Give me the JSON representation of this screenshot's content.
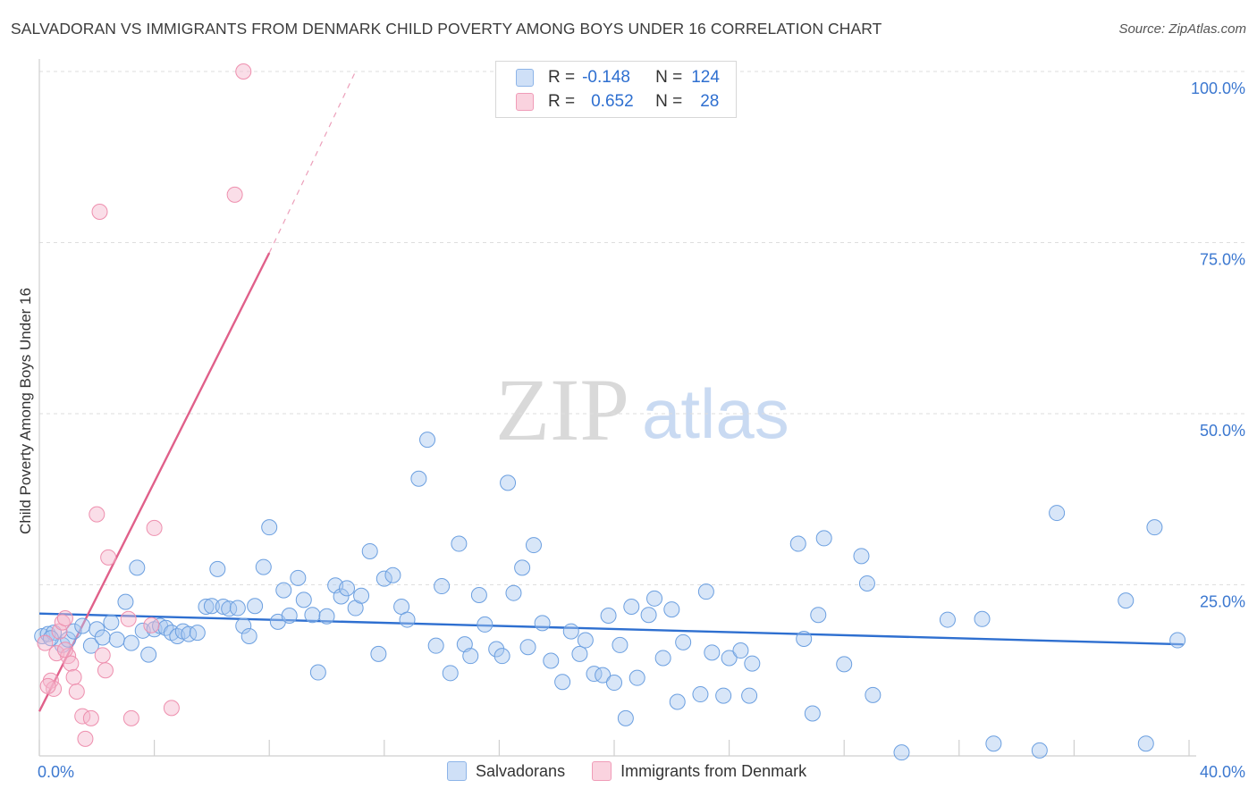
{
  "header": {
    "title": "SALVADORAN VS IMMIGRANTS FROM DENMARK CHILD POVERTY AMONG BOYS UNDER 16 CORRELATION CHART",
    "source": "Source: ZipAtlas.com"
  },
  "watermark": {
    "zip": "ZIP",
    "atlas": "atlas"
  },
  "legend": {
    "rows": [
      {
        "r_label": "R =",
        "r_value": "-0.148",
        "n_label": "N =",
        "n_value": "124",
        "color": "#a9c8f0"
      },
      {
        "r_label": "R =",
        "r_value": "0.652",
        "n_label": "N =",
        "n_value": "28",
        "color": "#f5b6cb"
      }
    ]
  },
  "bottom_legend": {
    "items": [
      {
        "label": "Salvadorans",
        "color": "#a9c8f0"
      },
      {
        "label": "Immigrants from Denmark",
        "color": "#f5b6cb"
      }
    ]
  },
  "chart_data": {
    "type": "scatter",
    "ylabel": "Child Poverty Among Boys Under 16",
    "xlim": [
      0,
      40
    ],
    "ylim": [
      0,
      100
    ],
    "x_tick_labels": [
      {
        "value": 0,
        "label": "0.0%"
      },
      {
        "value": 40,
        "label": "40.0%"
      }
    ],
    "y_tick_labels": [
      {
        "value": 25,
        "label": "25.0%"
      },
      {
        "value": 50,
        "label": "50.0%"
      },
      {
        "value": 75,
        "label": "75.0%"
      },
      {
        "value": 100,
        "label": "100.0%"
      }
    ],
    "grid": true,
    "series": [
      {
        "name": "Salvadorans",
        "color": "#6b9fe0",
        "fill": "#a9c8f0",
        "trend": {
          "x": [
            0,
            39.8
          ],
          "y": [
            20.8,
            16.3
          ],
          "color": "#2e6fd0"
        },
        "points": [
          [
            0.1,
            17.5
          ],
          [
            0.3,
            17.8
          ],
          [
            0.5,
            18.0
          ],
          [
            0.8,
            16.2
          ],
          [
            1.0,
            17.0
          ],
          [
            1.2,
            18.2
          ],
          [
            1.5,
            19.0
          ],
          [
            1.8,
            16.1
          ],
          [
            2.0,
            18.5
          ],
          [
            2.2,
            17.3
          ],
          [
            2.5,
            19.5
          ],
          [
            2.7,
            17.0
          ],
          [
            3.0,
            22.5
          ],
          [
            3.2,
            16.5
          ],
          [
            3.4,
            27.5
          ],
          [
            3.6,
            18.3
          ],
          [
            3.8,
            14.8
          ],
          [
            4.0,
            18.5
          ],
          [
            4.2,
            19.0
          ],
          [
            4.4,
            18.7
          ],
          [
            4.6,
            18.0
          ],
          [
            4.8,
            17.5
          ],
          [
            5.0,
            18.2
          ],
          [
            5.2,
            17.8
          ],
          [
            5.5,
            18.0
          ],
          [
            5.8,
            21.8
          ],
          [
            6.0,
            21.9
          ],
          [
            6.2,
            27.3
          ],
          [
            6.4,
            21.8
          ],
          [
            6.6,
            21.5
          ],
          [
            6.9,
            21.6
          ],
          [
            7.1,
            19.0
          ],
          [
            7.3,
            17.5
          ],
          [
            7.5,
            21.9
          ],
          [
            7.8,
            27.6
          ],
          [
            8.0,
            33.4
          ],
          [
            8.3,
            19.6
          ],
          [
            8.5,
            24.2
          ],
          [
            8.7,
            20.5
          ],
          [
            9.0,
            26.0
          ],
          [
            9.2,
            22.8
          ],
          [
            9.5,
            20.6
          ],
          [
            9.7,
            12.2
          ],
          [
            10.0,
            20.4
          ],
          [
            10.3,
            24.9
          ],
          [
            10.5,
            23.3
          ],
          [
            10.7,
            24.5
          ],
          [
            11.0,
            21.6
          ],
          [
            11.2,
            23.4
          ],
          [
            11.5,
            29.9
          ],
          [
            11.8,
            14.9
          ],
          [
            12.0,
            25.9
          ],
          [
            12.3,
            26.4
          ],
          [
            12.6,
            21.8
          ],
          [
            12.8,
            19.9
          ],
          [
            13.2,
            40.5
          ],
          [
            13.5,
            46.2
          ],
          [
            13.8,
            16.1
          ],
          [
            14.0,
            24.8
          ],
          [
            14.3,
            12.1
          ],
          [
            14.6,
            31.0
          ],
          [
            14.8,
            16.3
          ],
          [
            15.0,
            14.6
          ],
          [
            15.3,
            23.5
          ],
          [
            15.5,
            19.2
          ],
          [
            15.9,
            15.6
          ],
          [
            16.1,
            14.6
          ],
          [
            16.3,
            39.9
          ],
          [
            16.5,
            23.8
          ],
          [
            16.8,
            27.5
          ],
          [
            17.0,
            15.9
          ],
          [
            17.2,
            30.8
          ],
          [
            17.5,
            19.4
          ],
          [
            17.8,
            13.9
          ],
          [
            18.2,
            10.8
          ],
          [
            18.5,
            18.2
          ],
          [
            18.8,
            14.9
          ],
          [
            19.0,
            16.9
          ],
          [
            19.3,
            12.0
          ],
          [
            19.6,
            11.8
          ],
          [
            19.8,
            20.5
          ],
          [
            20.0,
            10.7
          ],
          [
            20.2,
            16.2
          ],
          [
            20.4,
            5.5
          ],
          [
            20.6,
            21.8
          ],
          [
            20.8,
            11.4
          ],
          [
            21.2,
            20.6
          ],
          [
            21.4,
            23.0
          ],
          [
            21.7,
            14.3
          ],
          [
            22.0,
            21.4
          ],
          [
            22.2,
            7.9
          ],
          [
            22.4,
            16.6
          ],
          [
            23.0,
            9.0
          ],
          [
            23.2,
            24.0
          ],
          [
            23.4,
            15.1
          ],
          [
            23.8,
            8.8
          ],
          [
            24.0,
            14.3
          ],
          [
            24.4,
            15.4
          ],
          [
            24.7,
            8.8
          ],
          [
            24.8,
            13.5
          ],
          [
            26.4,
            31.0
          ],
          [
            26.6,
            17.1
          ],
          [
            26.9,
            6.2
          ],
          [
            27.1,
            20.6
          ],
          [
            27.3,
            31.8
          ],
          [
            28.0,
            13.4
          ],
          [
            28.6,
            29.2
          ],
          [
            28.8,
            25.2
          ],
          [
            29.0,
            8.9
          ],
          [
            30.0,
            0.5
          ],
          [
            31.6,
            19.9
          ],
          [
            32.8,
            20.0
          ],
          [
            33.2,
            1.8
          ],
          [
            34.8,
            0.8
          ],
          [
            35.4,
            35.5
          ],
          [
            37.8,
            22.7
          ],
          [
            38.5,
            1.8
          ],
          [
            38.8,
            33.4
          ],
          [
            39.6,
            16.9
          ],
          [
            0.4,
            17.2
          ]
        ]
      },
      {
        "name": "Immigrants from Denmark",
        "color": "#ee8fae",
        "fill": "#f5b6cb",
        "trend": {
          "x": [
            0,
            8.0
          ],
          "y": [
            6.5,
            73.5
          ],
          "color": "#e0608a",
          "dashed_extension": {
            "x": [
              8.0,
              11.0
            ],
            "y": [
              73.5,
              100.0
            ]
          }
        },
        "points": [
          [
            0.2,
            16.5
          ],
          [
            0.4,
            11.0
          ],
          [
            0.5,
            9.8
          ],
          [
            0.6,
            15.0
          ],
          [
            0.7,
            18.2
          ],
          [
            0.8,
            19.5
          ],
          [
            0.9,
            20.1
          ],
          [
            1.0,
            14.6
          ],
          [
            1.1,
            13.5
          ],
          [
            1.2,
            11.5
          ],
          [
            1.3,
            9.4
          ],
          [
            1.5,
            5.8
          ],
          [
            1.6,
            2.5
          ],
          [
            1.8,
            5.5
          ],
          [
            2.0,
            35.3
          ],
          [
            2.1,
            79.5
          ],
          [
            2.2,
            14.7
          ],
          [
            2.3,
            12.5
          ],
          [
            2.4,
            29.0
          ],
          [
            3.1,
            20.0
          ],
          [
            3.2,
            5.5
          ],
          [
            3.9,
            19.1
          ],
          [
            4.0,
            33.3
          ],
          [
            4.6,
            7.0
          ],
          [
            6.8,
            82.0
          ],
          [
            7.1,
            100.0
          ],
          [
            0.3,
            10.2
          ],
          [
            0.9,
            15.5
          ]
        ]
      }
    ]
  }
}
